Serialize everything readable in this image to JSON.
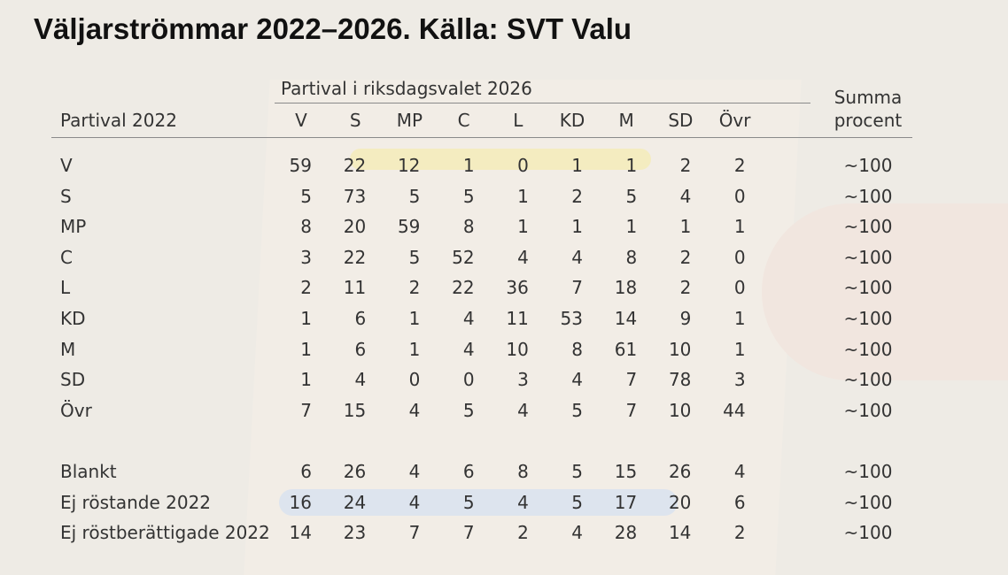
{
  "title": "Väljarströmmar 2022–2026. Källa: SVT Valu",
  "table": {
    "group_header": "Partival i riksdagsvalet 2026",
    "row_header": "Partival 2022",
    "columns": [
      "V",
      "S",
      "MP",
      "C",
      "L",
      "KD",
      "M",
      "SD",
      "Övr"
    ],
    "sum_header": [
      "Summa",
      "procent"
    ],
    "rows": [
      {
        "label": "V",
        "values": [
          59,
          22,
          12,
          1,
          0,
          1,
          1,
          2,
          2
        ],
        "sum": "~100"
      },
      {
        "label": "S",
        "values": [
          5,
          73,
          5,
          5,
          1,
          2,
          5,
          4,
          0
        ],
        "sum": "~100"
      },
      {
        "label": "MP",
        "values": [
          8,
          20,
          59,
          8,
          1,
          1,
          1,
          1,
          1
        ],
        "sum": "~100"
      },
      {
        "label": "C",
        "values": [
          3,
          22,
          5,
          52,
          4,
          4,
          8,
          2,
          0
        ],
        "sum": "~100"
      },
      {
        "label": "L",
        "values": [
          2,
          11,
          2,
          22,
          36,
          7,
          18,
          2,
          0
        ],
        "sum": "~100"
      },
      {
        "label": "KD",
        "values": [
          1,
          6,
          1,
          4,
          11,
          53,
          14,
          9,
          1
        ],
        "sum": "~100"
      },
      {
        "label": "M",
        "values": [
          1,
          6,
          1,
          4,
          10,
          8,
          61,
          10,
          1
        ],
        "sum": "~100"
      },
      {
        "label": "SD",
        "values": [
          1,
          4,
          0,
          0,
          3,
          4,
          7,
          78,
          3
        ],
        "sum": "~100"
      },
      {
        "label": "Övr",
        "values": [
          7,
          15,
          4,
          5,
          4,
          5,
          7,
          10,
          44
        ],
        "sum": "~100"
      },
      {
        "label": "Blankt",
        "values": [
          6,
          26,
          4,
          6,
          8,
          5,
          15,
          26,
          4
        ],
        "sum": "~100"
      },
      {
        "label": "Ej röstande 2022",
        "values": [
          16,
          24,
          4,
          5,
          4,
          5,
          17,
          20,
          6
        ],
        "sum": "~100"
      },
      {
        "label": "Ej röstberättigade 2022",
        "values": [
          14,
          23,
          7,
          7,
          2,
          4,
          28,
          14,
          2
        ],
        "sum": "~100"
      }
    ]
  }
}
